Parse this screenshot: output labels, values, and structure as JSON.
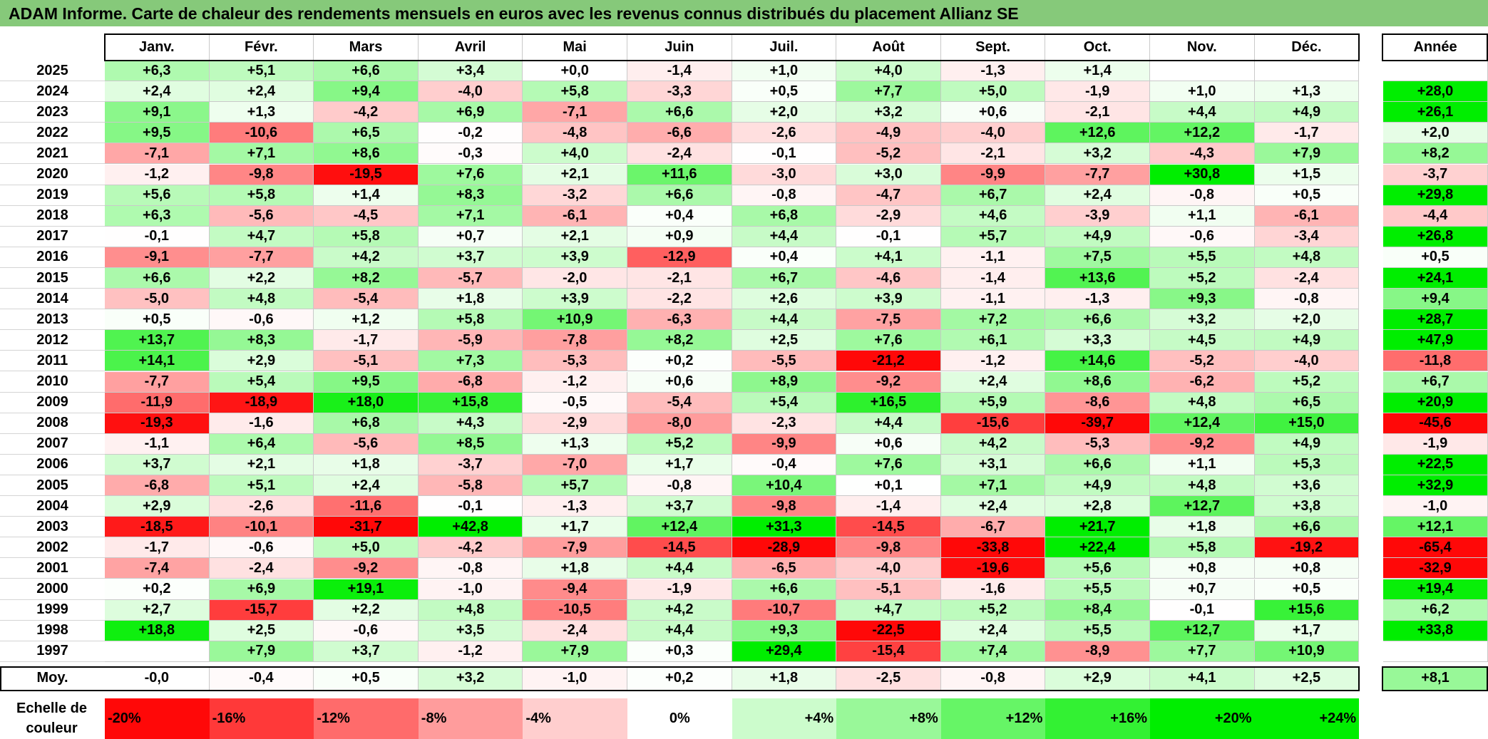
{
  "title": "ADAM Informe. Carte de chaleur des rendements mensuels en euros avec les revenus connus distribués du placement Allianz SE",
  "chart_data": {
    "type": "heatmap",
    "months": [
      "Janv.",
      "Févr.",
      "Mars",
      "Avril",
      "Mai",
      "Juin",
      "Juil.",
      "Août",
      "Sept.",
      "Oct.",
      "Nov.",
      "Déc."
    ],
    "annual_label": "Année",
    "rows": [
      {
        "year": "2025",
        "values": [
          "+6,3",
          "+5,1",
          "+6,6",
          "+3,4",
          "+0,0",
          "-1,4",
          "+1,0",
          "+4,0",
          "-1,3",
          "+1,4",
          "",
          ""
        ],
        "annual": ""
      },
      {
        "year": "2024",
        "values": [
          "+2,4",
          "+2,4",
          "+9,4",
          "-4,0",
          "+5,8",
          "-3,3",
          "+0,5",
          "+7,7",
          "+5,0",
          "-1,9",
          "+1,0",
          "+1,3"
        ],
        "annual": "+28,0"
      },
      {
        "year": "2023",
        "values": [
          "+9,1",
          "+1,3",
          "-4,2",
          "+6,9",
          "-7,1",
          "+6,6",
          "+2,0",
          "+3,2",
          "+0,6",
          "-2,1",
          "+4,4",
          "+4,9"
        ],
        "annual": "+26,1"
      },
      {
        "year": "2022",
        "values": [
          "+9,5",
          "-10,6",
          "+6,5",
          "-0,2",
          "-4,8",
          "-6,6",
          "-2,6",
          "-4,9",
          "-4,0",
          "+12,6",
          "+12,2",
          "-1,7"
        ],
        "annual": "+2,0"
      },
      {
        "year": "2021",
        "values": [
          "-7,1",
          "+7,1",
          "+8,6",
          "-0,3",
          "+4,0",
          "-2,4",
          "-0,1",
          "-5,2",
          "-2,1",
          "+3,2",
          "-4,3",
          "+7,9"
        ],
        "annual": "+8,2"
      },
      {
        "year": "2020",
        "values": [
          "-1,2",
          "-9,8",
          "-19,5",
          "+7,6",
          "+2,1",
          "+11,6",
          "-3,0",
          "+3,0",
          "-9,9",
          "-7,7",
          "+30,8",
          "+1,5"
        ],
        "annual": "-3,7"
      },
      {
        "year": "2019",
        "values": [
          "+5,6",
          "+5,8",
          "+1,4",
          "+8,3",
          "-3,2",
          "+6,6",
          "-0,8",
          "-4,7",
          "+6,7",
          "+2,4",
          "-0,8",
          "+0,5"
        ],
        "annual": "+29,8"
      },
      {
        "year": "2018",
        "values": [
          "+6,3",
          "-5,6",
          "-4,5",
          "+7,1",
          "-6,1",
          "+0,4",
          "+6,8",
          "-2,9",
          "+4,6",
          "-3,9",
          "+1,1",
          "-6,1"
        ],
        "annual": "-4,4"
      },
      {
        "year": "2017",
        "values": [
          "-0,1",
          "+4,7",
          "+5,8",
          "+0,7",
          "+2,1",
          "+0,9",
          "+4,4",
          "-0,1",
          "+5,7",
          "+4,9",
          "-0,6",
          "-3,4"
        ],
        "annual": "+26,8"
      },
      {
        "year": "2016",
        "values": [
          "-9,1",
          "-7,7",
          "+4,2",
          "+3,7",
          "+3,9",
          "-12,9",
          "+0,4",
          "+4,1",
          "-1,1",
          "+7,5",
          "+5,5",
          "+4,8"
        ],
        "annual": "+0,5"
      },
      {
        "year": "2015",
        "values": [
          "+6,6",
          "+2,2",
          "+8,2",
          "-5,7",
          "-2,0",
          "-2,1",
          "+6,7",
          "-4,6",
          "-1,4",
          "+13,6",
          "+5,2",
          "-2,4"
        ],
        "annual": "+24,1"
      },
      {
        "year": "2014",
        "values": [
          "-5,0",
          "+4,8",
          "-5,4",
          "+1,8",
          "+3,9",
          "-2,2",
          "+2,6",
          "+3,9",
          "-1,1",
          "-1,3",
          "+9,3",
          "-0,8"
        ],
        "annual": "+9,4"
      },
      {
        "year": "2013",
        "values": [
          "+0,5",
          "-0,6",
          "+1,2",
          "+5,8",
          "+10,9",
          "-6,3",
          "+4,4",
          "-7,5",
          "+7,2",
          "+6,6",
          "+3,2",
          "+2,0"
        ],
        "annual": "+28,7"
      },
      {
        "year": "2012",
        "values": [
          "+13,7",
          "+8,3",
          "-1,7",
          "-5,9",
          "-7,8",
          "+8,2",
          "+2,5",
          "+7,6",
          "+6,1",
          "+3,3",
          "+4,5",
          "+4,9"
        ],
        "annual": "+47,9"
      },
      {
        "year": "2011",
        "values": [
          "+14,1",
          "+2,9",
          "-5,1",
          "+7,3",
          "-5,3",
          "+0,2",
          "-5,5",
          "-21,2",
          "-1,2",
          "+14,6",
          "-5,2",
          "-4,0"
        ],
        "annual": "-11,8"
      },
      {
        "year": "2010",
        "values": [
          "-7,7",
          "+5,4",
          "+9,5",
          "-6,8",
          "-1,2",
          "+0,6",
          "+8,9",
          "-9,2",
          "+2,4",
          "+8,6",
          "-6,2",
          "+5,2"
        ],
        "annual": "+6,7"
      },
      {
        "year": "2009",
        "values": [
          "-11,9",
          "-18,9",
          "+18,0",
          "+15,8",
          "-0,5",
          "-5,4",
          "+5,4",
          "+16,5",
          "+5,9",
          "-8,6",
          "+4,8",
          "+6,5"
        ],
        "annual": "+20,9"
      },
      {
        "year": "2008",
        "values": [
          "-19,3",
          "-1,6",
          "+6,8",
          "+4,3",
          "-2,9",
          "-8,0",
          "-2,3",
          "+4,4",
          "-15,6",
          "-39,7",
          "+12,4",
          "+15,0"
        ],
        "annual": "-45,6"
      },
      {
        "year": "2007",
        "values": [
          "-1,1",
          "+6,4",
          "-5,6",
          "+8,5",
          "+1,3",
          "+5,2",
          "-9,9",
          "+0,6",
          "+4,2",
          "-5,3",
          "-9,2",
          "+4,9"
        ],
        "annual": "-1,9"
      },
      {
        "year": "2006",
        "values": [
          "+3,7",
          "+2,1",
          "+1,8",
          "-3,7",
          "-7,0",
          "+1,7",
          "-0,4",
          "+7,6",
          "+3,1",
          "+6,6",
          "+1,1",
          "+5,3"
        ],
        "annual": "+22,5"
      },
      {
        "year": "2005",
        "values": [
          "-6,8",
          "+5,1",
          "+2,4",
          "-5,8",
          "+5,7",
          "-0,8",
          "+10,4",
          "+0,1",
          "+7,1",
          "+4,9",
          "+4,8",
          "+3,6"
        ],
        "annual": "+32,9"
      },
      {
        "year": "2004",
        "values": [
          "+2,9",
          "-2,6",
          "-11,6",
          "-0,1",
          "-1,3",
          "+3,7",
          "-9,8",
          "-1,4",
          "+2,4",
          "+2,8",
          "+12,7",
          "+3,8"
        ],
        "annual": "-1,0"
      },
      {
        "year": "2003",
        "values": [
          "-18,5",
          "-10,1",
          "-31,7",
          "+42,8",
          "+1,7",
          "+12,4",
          "+31,3",
          "-14,5",
          "-6,7",
          "+21,7",
          "+1,8",
          "+6,6"
        ],
        "annual": "+12,1"
      },
      {
        "year": "2002",
        "values": [
          "-1,7",
          "-0,6",
          "+5,0",
          "-4,2",
          "-7,9",
          "-14,5",
          "-28,9",
          "-9,8",
          "-33,8",
          "+22,4",
          "+5,8",
          "-19,2"
        ],
        "annual": "-65,4"
      },
      {
        "year": "2001",
        "values": [
          "-7,4",
          "-2,4",
          "-9,2",
          "-0,8",
          "+1,8",
          "+4,4",
          "-6,5",
          "-4,0",
          "-19,6",
          "+5,6",
          "+0,8",
          "+0,8"
        ],
        "annual": "-32,9"
      },
      {
        "year": "2000",
        "values": [
          "+0,2",
          "+6,9",
          "+19,1",
          "-1,0",
          "-9,4",
          "-1,9",
          "+6,6",
          "-5,1",
          "-1,6",
          "+5,5",
          "+0,7",
          "+0,5"
        ],
        "annual": "+19,4"
      },
      {
        "year": "1999",
        "values": [
          "+2,7",
          "-15,7",
          "+2,2",
          "+4,8",
          "-10,5",
          "+4,2",
          "-10,7",
          "+4,7",
          "+5,2",
          "+8,4",
          "-0,1",
          "+15,6"
        ],
        "annual": "+6,2"
      },
      {
        "year": "1998",
        "values": [
          "+18,8",
          "+2,5",
          "-0,6",
          "+3,5",
          "-2,4",
          "+4,4",
          "+9,3",
          "-22,5",
          "+2,4",
          "+5,5",
          "+12,7",
          "+1,7"
        ],
        "annual": "+33,8"
      },
      {
        "year": "1997",
        "values": [
          "",
          "+7,9",
          "+3,7",
          "-1,2",
          "+7,9",
          "+0,3",
          "+29,4",
          "-15,4",
          "+7,4",
          "-8,9",
          "+7,7",
          "+10,9"
        ],
        "annual": ""
      }
    ],
    "average": {
      "label": "Moy.",
      "values": [
        "-0,0",
        "-0,4",
        "+0,5",
        "+3,2",
        "-1,0",
        "+0,2",
        "+1,8",
        "-2,5",
        "-0,8",
        "+2,9",
        "+4,1",
        "+2,5"
      ],
      "annual": "+8,1"
    },
    "scale": {
      "label_line1": "Echelle de",
      "label_line2": "couleur",
      "steps": [
        {
          "label": "-20%",
          "value": -20
        },
        {
          "label": "-16%",
          "value": -16
        },
        {
          "label": "-12%",
          "value": -12
        },
        {
          "label": "-8%",
          "value": -8
        },
        {
          "label": "-4%",
          "value": -4
        },
        {
          "label": "0%",
          "value": 0
        },
        {
          "label": "+4%",
          "value": 4
        },
        {
          "label": "+8%",
          "value": 8
        },
        {
          "label": "+12%",
          "value": 12
        },
        {
          "label": "+16%",
          "value": 16
        },
        {
          "label": "+20%",
          "value": 20
        },
        {
          "label": "+24%",
          "value": 24
        }
      ]
    },
    "colors": {
      "title_bar": "#86c97a",
      "neg_max": "#ff0000",
      "pos_max": "#00ee00",
      "zero": "#ffffff"
    }
  }
}
